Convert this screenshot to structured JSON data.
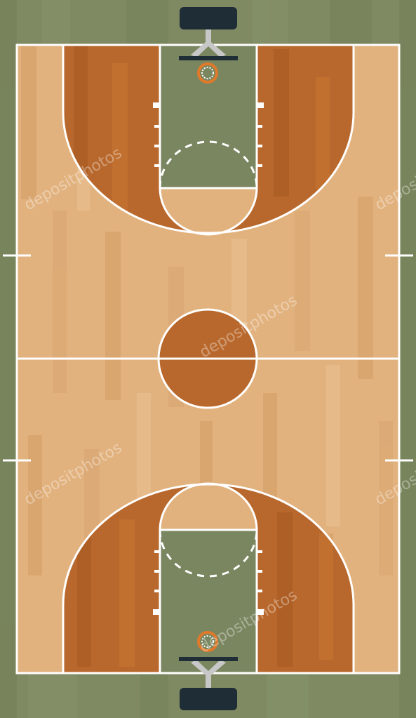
{
  "scene": {
    "subject": "basketball-court-top-view",
    "colors": {
      "outer_floor": "#7f8a62",
      "court_wood": "#e2b27e",
      "court_wood_dark": "#d39e66",
      "paint_lane": "#7a8660",
      "three_point_region": "#b8682c",
      "center_circle": "#b8682c",
      "lines": "#ffffff",
      "backboard": "#1f2d36",
      "rim": "#e07a2a"
    }
  },
  "watermark": {
    "text": "depositphotos"
  }
}
